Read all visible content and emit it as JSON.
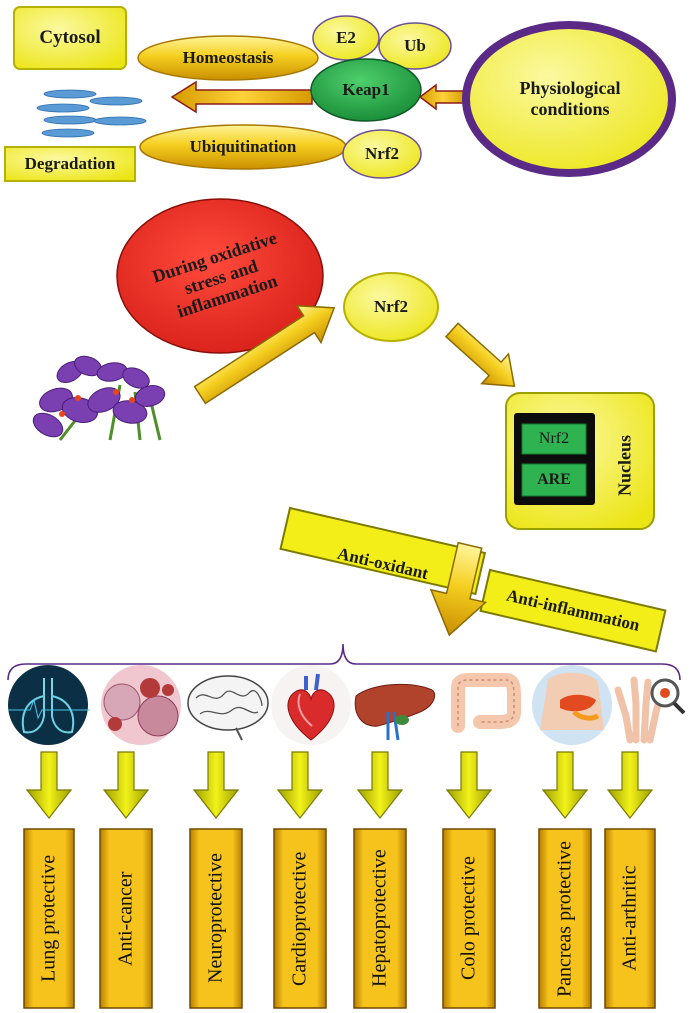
{
  "cytosol": {
    "title": "Cytosol",
    "degradation": "Degradation",
    "homeostasis": "Homeostasis",
    "ubiquitination": "Ubiquitination",
    "e2": "E2",
    "ub": "Ub",
    "keap1": "Keap1",
    "nrf2": "Nrf2",
    "physiological": "Physiological conditions"
  },
  "stress": {
    "oval_text": "During oxidative stress and inflammation",
    "nrf2": "Nrf2"
  },
  "nucleus": {
    "label": "Nucleus",
    "nrf2": "Nrf2",
    "are": "ARE"
  },
  "effects": {
    "antioxidant": "Anti-oxidant",
    "antiinflammation": "Anti-inflammation"
  },
  "outcomes": [
    {
      "label": "Lung protective",
      "icon": "lungs-icon"
    },
    {
      "label": "Anti-cancer",
      "icon": "cancer-cells-icon"
    },
    {
      "label": "Neuroprotective",
      "icon": "brain-icon"
    },
    {
      "label": "Cardioprotective",
      "icon": "heart-icon"
    },
    {
      "label": "Hepatoprotective",
      "icon": "liver-icon"
    },
    {
      "label": "Colo protective",
      "icon": "colon-icon"
    },
    {
      "label": "Pancreas protective",
      "icon": "pancreas-icon"
    },
    {
      "label": "Anti-arthritic",
      "icon": "hand-joints-icon"
    }
  ],
  "colors": {
    "yellow": "#f5ec16",
    "gold": "#f2b705",
    "green": "#27a24a",
    "red": "#e32922",
    "purple": "#6a2c8f"
  }
}
